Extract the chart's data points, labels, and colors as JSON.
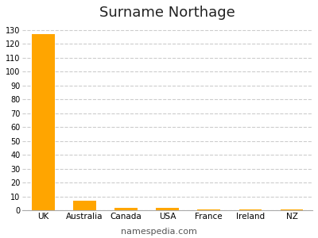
{
  "title": "Surname Northage",
  "categories": [
    "UK",
    "Australia",
    "Canada",
    "USA",
    "France",
    "Ireland",
    "NZ"
  ],
  "values": [
    127,
    7,
    2,
    2,
    1,
    1,
    1
  ],
  "bar_color": "#FFA500",
  "background_color": "#ffffff",
  "ylim": [
    0,
    135
  ],
  "yticks": [
    0,
    10,
    20,
    30,
    40,
    50,
    60,
    70,
    80,
    90,
    100,
    110,
    120,
    130
  ],
  "title_fontsize": 13,
  "tick_fontsize": 7,
  "xlabel_fontsize": 7.5,
  "footer_text": "namespedia.com",
  "footer_fontsize": 8,
  "grid_color": "#cccccc",
  "grid_linestyle": "--"
}
